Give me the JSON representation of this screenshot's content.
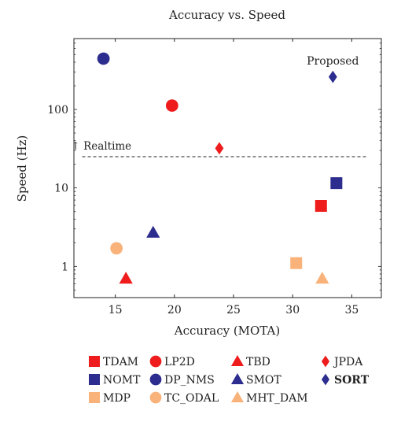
{
  "chart_data": {
    "type": "scatter",
    "title": "Accuracy vs. Speed",
    "xlabel": "Accuracy (MOTA)",
    "ylabel": "Speed (Hz)",
    "xlim": [
      11.5,
      37.5
    ],
    "ylim": [
      0.4,
      800
    ],
    "yscale": "log",
    "xticks": [
      15,
      20,
      25,
      30,
      35
    ],
    "yticks": [
      1,
      10,
      100
    ],
    "ytick_labels": [
      "1",
      "10",
      "100"
    ],
    "grid": false,
    "legend_position": "bottom",
    "realtime_line": {
      "y": 25,
      "x_from": 12.2,
      "x_to": 36.2,
      "label": "↑ Realtime"
    },
    "annotation": {
      "text": "Proposed",
      "x": 33.4,
      "y": 420
    },
    "series": [
      {
        "name": "TDAM",
        "marker": "square",
        "color": "#ee1c1c",
        "x": 32.4,
        "y": 5.9
      },
      {
        "name": "LP2D",
        "marker": "circle",
        "color": "#ee1c1c",
        "x": 19.8,
        "y": 112
      },
      {
        "name": "TBD",
        "marker": "triangle",
        "color": "#ee1c1c",
        "x": 15.9,
        "y": 0.7
      },
      {
        "name": "JPDA",
        "marker": "diamond",
        "color": "#ee1c1c",
        "x": 23.8,
        "y": 32
      },
      {
        "name": "NOMT",
        "marker": "square",
        "color": "#2d2d8f",
        "x": 33.7,
        "y": 11.5
      },
      {
        "name": "DP_NMS",
        "marker": "circle",
        "color": "#2d2d8f",
        "x": 14.0,
        "y": 444
      },
      {
        "name": "SMOT",
        "marker": "triangle",
        "color": "#2d2d8f",
        "x": 18.2,
        "y": 2.7
      },
      {
        "name": "SORT",
        "marker": "diamond",
        "color": "#2d2d8f",
        "x": 33.4,
        "y": 260,
        "bold": true
      },
      {
        "name": "MDP",
        "marker": "square",
        "color": "#f9b27a",
        "x": 30.3,
        "y": 1.1
      },
      {
        "name": "TC_ODAL",
        "marker": "circle",
        "color": "#f9b27a",
        "x": 15.1,
        "y": 1.7
      },
      {
        "name": "MHT_DAM",
        "marker": "triangle",
        "color": "#f9b27a",
        "x": 32.5,
        "y": 0.7
      }
    ]
  }
}
